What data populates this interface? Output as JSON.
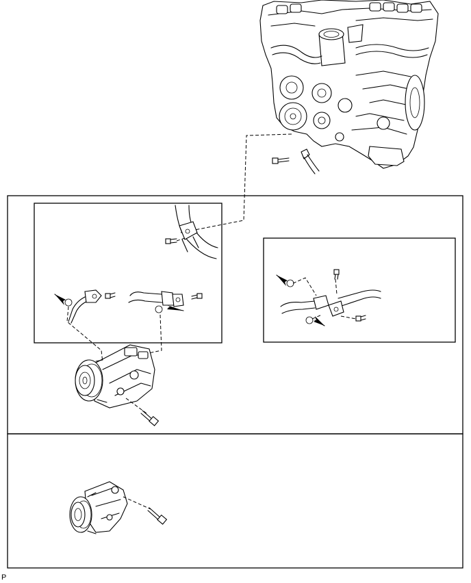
{
  "figure": {
    "corner_label": "P"
  }
}
